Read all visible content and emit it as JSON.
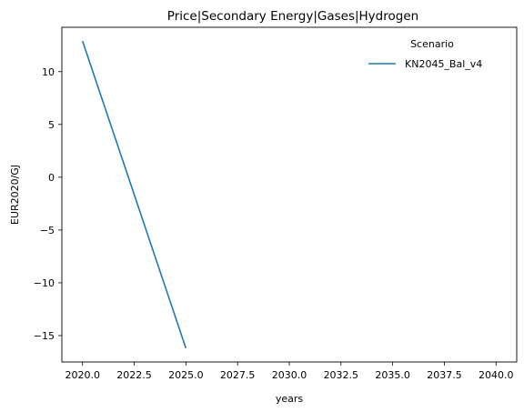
{
  "chart_data": {
    "type": "line",
    "title": "Price|Secondary Energy|Gases|Hydrogen",
    "xlabel": "years",
    "ylabel": "EUR2020/GJ",
    "xlim": [
      2019.0,
      2041.0
    ],
    "ylim": [
      -17.5,
      14.2
    ],
    "xticks": [
      2020.0,
      2022.5,
      2025.0,
      2027.5,
      2030.0,
      2032.5,
      2035.0,
      2037.5,
      2040.0
    ],
    "xtick_labels": [
      "2020.0",
      "2022.5",
      "2025.0",
      "2027.5",
      "2030.0",
      "2032.5",
      "2035.0",
      "2037.5",
      "2040.0"
    ],
    "yticks": [
      10,
      5,
      0,
      -5,
      -10,
      -15
    ],
    "ytick_labels": [
      "10",
      "5",
      "0",
      "−5",
      "−10",
      "−15"
    ],
    "grid": false,
    "legend": {
      "title": "Scenario",
      "placement": "top-right"
    },
    "series": [
      {
        "name": "KN2045_Bal_v4",
        "color": "#1f77b4",
        "x": [
          2020,
          2025
        ],
        "y": [
          12.9,
          -16.2
        ]
      }
    ]
  }
}
